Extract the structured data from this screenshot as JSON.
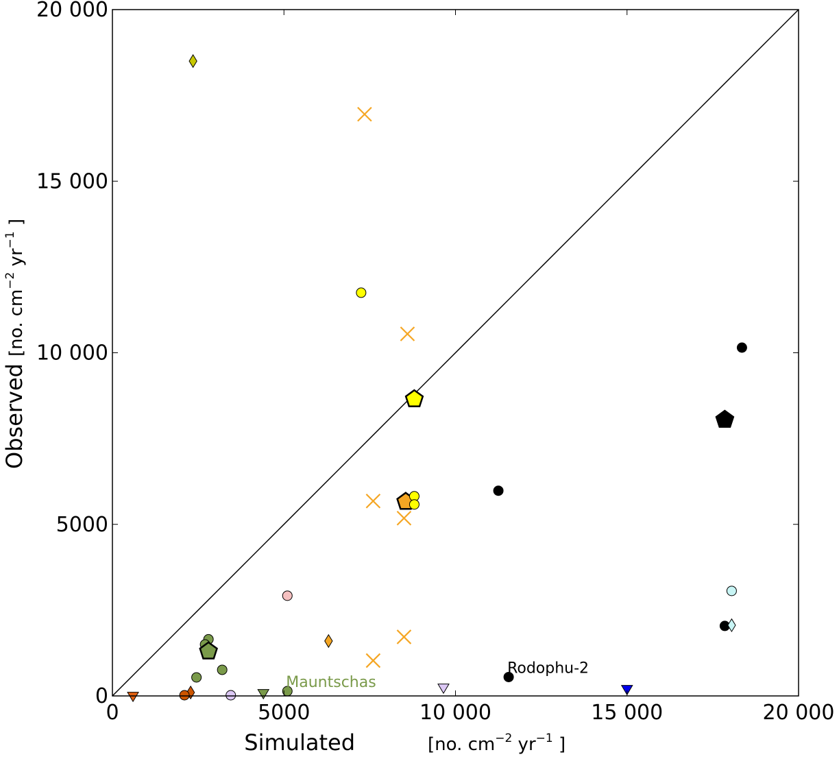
{
  "chart_data": {
    "type": "scatter",
    "xlim": [
      0,
      20000
    ],
    "ylim": [
      0,
      20000
    ],
    "x_ticks": [
      0,
      5000,
      10000,
      15000,
      20000
    ],
    "y_ticks": [
      0,
      5000,
      10000,
      15000,
      20000
    ],
    "x_tick_labels": [
      "0",
      "5000",
      "10 000",
      "15 000",
      "20 000"
    ],
    "y_tick_labels": [
      "0",
      "5000",
      "10 000",
      "15 000",
      "20 000"
    ],
    "xlabel": "Simulated",
    "ylabel": "Observed",
    "unit_open": "[no. cm",
    "unit_exp1": "−2",
    "unit_mid": " yr",
    "unit_exp2": "−1",
    "unit_close": " ]",
    "identity_line": true,
    "grid": false,
    "points": [
      {
        "x": 2350,
        "y": 18500,
        "marker": "diamond",
        "color": "#c8c800",
        "size": 8
      },
      {
        "x": 7350,
        "y": 16950,
        "marker": "x",
        "color": "#f5a623",
        "size": 10
      },
      {
        "x": 7250,
        "y": 11750,
        "marker": "circle",
        "color": "#ffff00",
        "size": 7
      },
      {
        "x": 8600,
        "y": 10550,
        "marker": "x",
        "color": "#f5a623",
        "size": 10
      },
      {
        "x": 8800,
        "y": 8650,
        "marker": "pentagon",
        "color": "#ffff00",
        "size": 13,
        "bold": true
      },
      {
        "x": 17850,
        "y": 8050,
        "marker": "pentagon",
        "color": "#000000",
        "size": 14
      },
      {
        "x": 18350,
        "y": 10150,
        "marker": "circle",
        "color": "#000000",
        "size": 7
      },
      {
        "x": 11250,
        "y": 5980,
        "marker": "circle",
        "color": "#000000",
        "size": 7
      },
      {
        "x": 7600,
        "y": 5680,
        "marker": "x",
        "color": "#f5a623",
        "size": 10
      },
      {
        "x": 8550,
        "y": 5660,
        "marker": "pentagon",
        "color": "#f5a623",
        "size": 13,
        "bold": true
      },
      {
        "x": 8800,
        "y": 5820,
        "marker": "circle",
        "color": "#ffff00",
        "size": 7
      },
      {
        "x": 8800,
        "y": 5580,
        "marker": "circle",
        "color": "#ffff00",
        "size": 7
      },
      {
        "x": 8500,
        "y": 5180,
        "marker": "x",
        "color": "#f5a623",
        "size": 10
      },
      {
        "x": 5100,
        "y": 2920,
        "marker": "circle",
        "color": "#f5c0c0",
        "size": 7
      },
      {
        "x": 18050,
        "y": 3060,
        "marker": "circle",
        "color": "#c8f5f5",
        "size": 7
      },
      {
        "x": 17850,
        "y": 2040,
        "marker": "circle",
        "color": "#000000",
        "size": 7
      },
      {
        "x": 18050,
        "y": 2060,
        "marker": "diamond",
        "color": "#c8f5f5",
        "size": 8
      },
      {
        "x": 6300,
        "y": 1600,
        "marker": "diamond",
        "color": "#f5a623",
        "size": 8
      },
      {
        "x": 8500,
        "y": 1720,
        "marker": "x",
        "color": "#f5a623",
        "size": 10
      },
      {
        "x": 2800,
        "y": 1650,
        "marker": "circle",
        "color": "#7a9a4a",
        "size": 7
      },
      {
        "x": 2700,
        "y": 1500,
        "marker": "circle",
        "color": "#7a9a4a",
        "size": 7
      },
      {
        "x": 2800,
        "y": 1300,
        "marker": "pentagon",
        "color": "#7a9a4a",
        "size": 13,
        "bold": true
      },
      {
        "x": 7600,
        "y": 1030,
        "marker": "x",
        "color": "#f5a623",
        "size": 10
      },
      {
        "x": 3200,
        "y": 760,
        "marker": "circle",
        "color": "#7a9a4a",
        "size": 7
      },
      {
        "x": 2450,
        "y": 540,
        "marker": "circle",
        "color": "#7a9a4a",
        "size": 7
      },
      {
        "x": 11550,
        "y": 550,
        "marker": "circle",
        "color": "#000000",
        "size": 7
      },
      {
        "x": 9650,
        "y": 220,
        "marker": "triangle-down",
        "color": "#dcc8f5",
        "size": 8
      },
      {
        "x": 5100,
        "y": 140,
        "marker": "circle",
        "color": "#7a9a4a",
        "size": 7
      },
      {
        "x": 4400,
        "y": 60,
        "marker": "triangle-down",
        "color": "#7a9a4a",
        "size": 8
      },
      {
        "x": 3450,
        "y": 20,
        "marker": "circle",
        "color": "#dcc8f5",
        "size": 7
      },
      {
        "x": 2280,
        "y": 100,
        "marker": "diamond",
        "color": "#cc5500",
        "size": 8
      },
      {
        "x": 2100,
        "y": 20,
        "marker": "circle",
        "color": "#cc5500",
        "size": 7
      },
      {
        "x": 600,
        "y": -20,
        "marker": "triangle-down",
        "color": "#e06010",
        "size": 8
      },
      {
        "x": 15000,
        "y": 180,
        "marker": "triangle-down",
        "color": "#0000ee",
        "size": 8
      }
    ],
    "annotations": [
      {
        "text": "Rodophu-2",
        "x": 11550,
        "y": 550,
        "color": "#000000"
      },
      {
        "text": "Mauntschas",
        "x": 5100,
        "y": 140,
        "color": "#7a9a4a"
      }
    ]
  }
}
